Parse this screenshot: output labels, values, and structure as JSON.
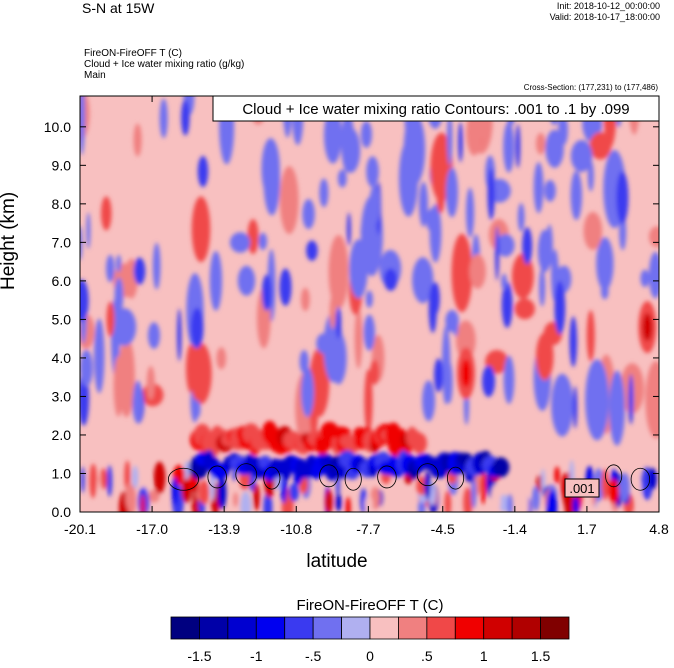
{
  "header": {
    "title": "S-N at 15W",
    "init": "Init: 2018-10-12_00:00:00",
    "valid": "Valid: 2018-10-17_18:00:00",
    "field_line1": "FireON-FireOFF T   (C)",
    "field_line2": "Cloud + Ice water mixing ratio   (g/kg)",
    "field_line3": "Main",
    "cross_section": "Cross-Section: (177,231) to (177,486)"
  },
  "chart_data": {
    "type": "heatmap",
    "title": "Cloud + Ice water mixing ratio Contours: .001 to .1 by .099",
    "xlabel": "latitude",
    "ylabel": "Height (km)",
    "xlim": [
      -20.1,
      4.8
    ],
    "ylim": [
      0.0,
      10.8
    ],
    "x_ticks": [
      "-20.1",
      "-17.0",
      "-13.9",
      "-10.8",
      "-7.7",
      "-4.5",
      "-1.4",
      "1.7",
      "4.8"
    ],
    "y_ticks": [
      "0.0",
      "1.0",
      "2.0",
      "3.0",
      "4.0",
      "5.0",
      "6.0",
      "7.0",
      "8.0",
      "9.0",
      "10.0"
    ],
    "contour_label": ".001",
    "colorbar": {
      "title": "FireON-FireOFF T  (C)",
      "labels": [
        "-1.5",
        "-1",
        "-.5",
        "0",
        ".5",
        "1",
        "1.5"
      ],
      "colors": [
        "#000080",
        "#0000a8",
        "#0000d0",
        "#0000f0",
        "#3a3af0",
        "#7070f0",
        "#b0b0f0",
        "#f8c0c0",
        "#f08080",
        "#f04848",
        "#f00000",
        "#d00000",
        "#b00000",
        "#800000"
      ]
    },
    "features": [
      {
        "name": "warm band",
        "lat_range": [
          -15.0,
          -5.5
        ],
        "height_km": 1.9,
        "value": 0.8
      },
      {
        "name": "cool band",
        "lat_range": [
          -15.0,
          -2.0
        ],
        "height_km": 1.2,
        "value": -1.0
      },
      {
        "name": "warm plume",
        "lat": -3.5,
        "height_km": 3.6,
        "value": 0.9
      },
      {
        "name": "warm blob",
        "lat": 4.3,
        "height_km": 4.8,
        "value": 1.0
      }
    ]
  }
}
